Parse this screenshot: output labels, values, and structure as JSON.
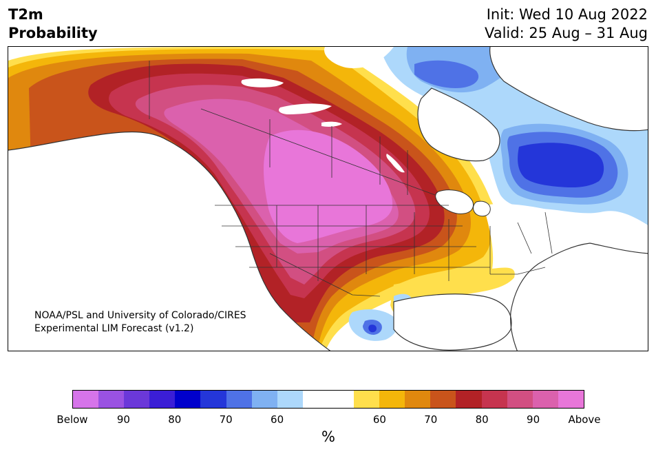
{
  "title": {
    "line1": "T2m",
    "line2": "Probability"
  },
  "forecast_info": {
    "init": "Init: Wed 10 Aug 2022",
    "valid": "Valid: 25 Aug – 31 Aug"
  },
  "credit": {
    "line1": "NOAA/PSL and University of Colorado/CIRES",
    "line2": "Experimental LIM Forecast (v1.2)"
  },
  "colorbar": {
    "colors": [
      "#d674ea",
      "#9a52e2",
      "#6b38d9",
      "#3b1ed6",
      "#0000cc",
      "#2436d9",
      "#4f72e6",
      "#7fb1f2",
      "#add8fb",
      "#ffffff",
      "#ffffff",
      "#ffdf4c",
      "#f4b60a",
      "#e0880e",
      "#c9541b",
      "#b22226",
      "#c6344f",
      "#d24f82",
      "#db61ad",
      "#e876d9"
    ],
    "labels": [
      "Below",
      "90",
      "80",
      "70",
      "60",
      "60",
      "70",
      "80",
      "90",
      "Above"
    ],
    "label_positions": [
      0,
      2,
      4,
      6,
      8,
      12,
      14,
      16,
      18,
      20
    ],
    "units": "%"
  },
  "map_colors": {
    "outline": "#333333",
    "above_extreme": "#e876d9",
    "above_90": "#d24f82",
    "above_80": "#b22226",
    "above_70": "#c9541b",
    "above_60": "#f4b60a",
    "above_low": "#ffdf4c",
    "below_low": "#add8fb",
    "below_60": "#7fb1f2",
    "below_70": "#4f72e6",
    "below_80": "#2436d9"
  }
}
